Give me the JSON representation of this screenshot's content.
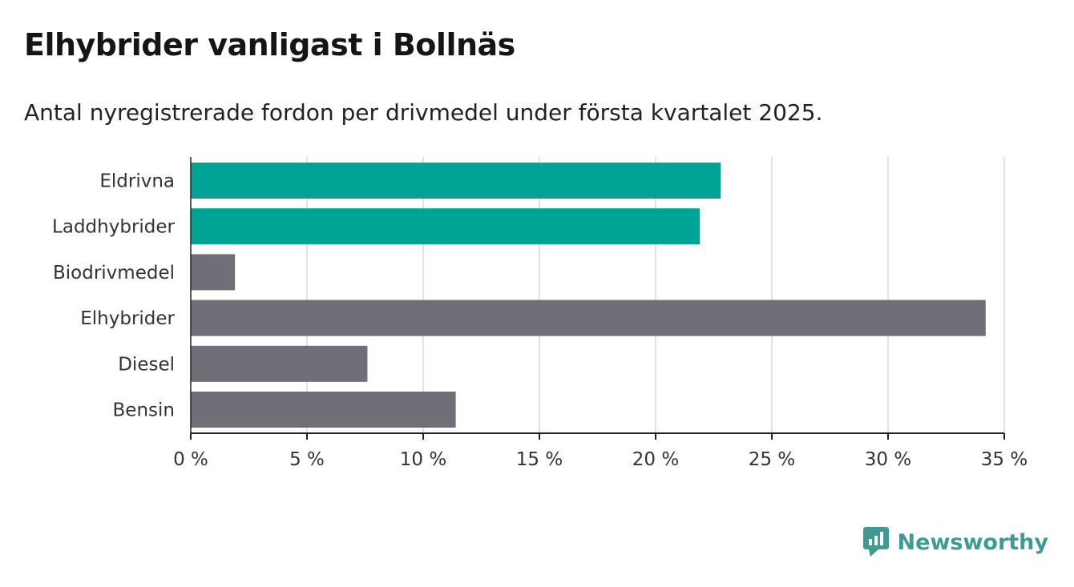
{
  "title": "Elhybrider vanligast i Bollnäs",
  "subtitle": "Antal nyregistrerade fordon per drivmedel under första kvartalet 2025.",
  "brand": {
    "name": "Newsworthy",
    "color": "#3d9b94",
    "icon": "bar-chart-speech-bubble-icon"
  },
  "colors": {
    "highlight": "#00a396",
    "default": "#706e76",
    "grid": "#d9d9d9",
    "axis": "#222222"
  },
  "chart_data": {
    "type": "bar",
    "orientation": "horizontal",
    "categories": [
      "Eldrivna",
      "Laddhybrider",
      "Biodrivmedel",
      "Elhybrider",
      "Diesel",
      "Bensin"
    ],
    "values": [
      22.8,
      21.9,
      1.9,
      34.2,
      7.6,
      11.4
    ],
    "highlighted": [
      true,
      true,
      false,
      false,
      false,
      false
    ],
    "xlim": [
      0,
      35
    ],
    "xticks": [
      0,
      5,
      10,
      15,
      20,
      25,
      30,
      35
    ],
    "xtick_labels": [
      "0 %",
      "5 %",
      "10 %",
      "15 %",
      "20 %",
      "25 %",
      "30 %",
      "35 %"
    ],
    "grid": true
  }
}
